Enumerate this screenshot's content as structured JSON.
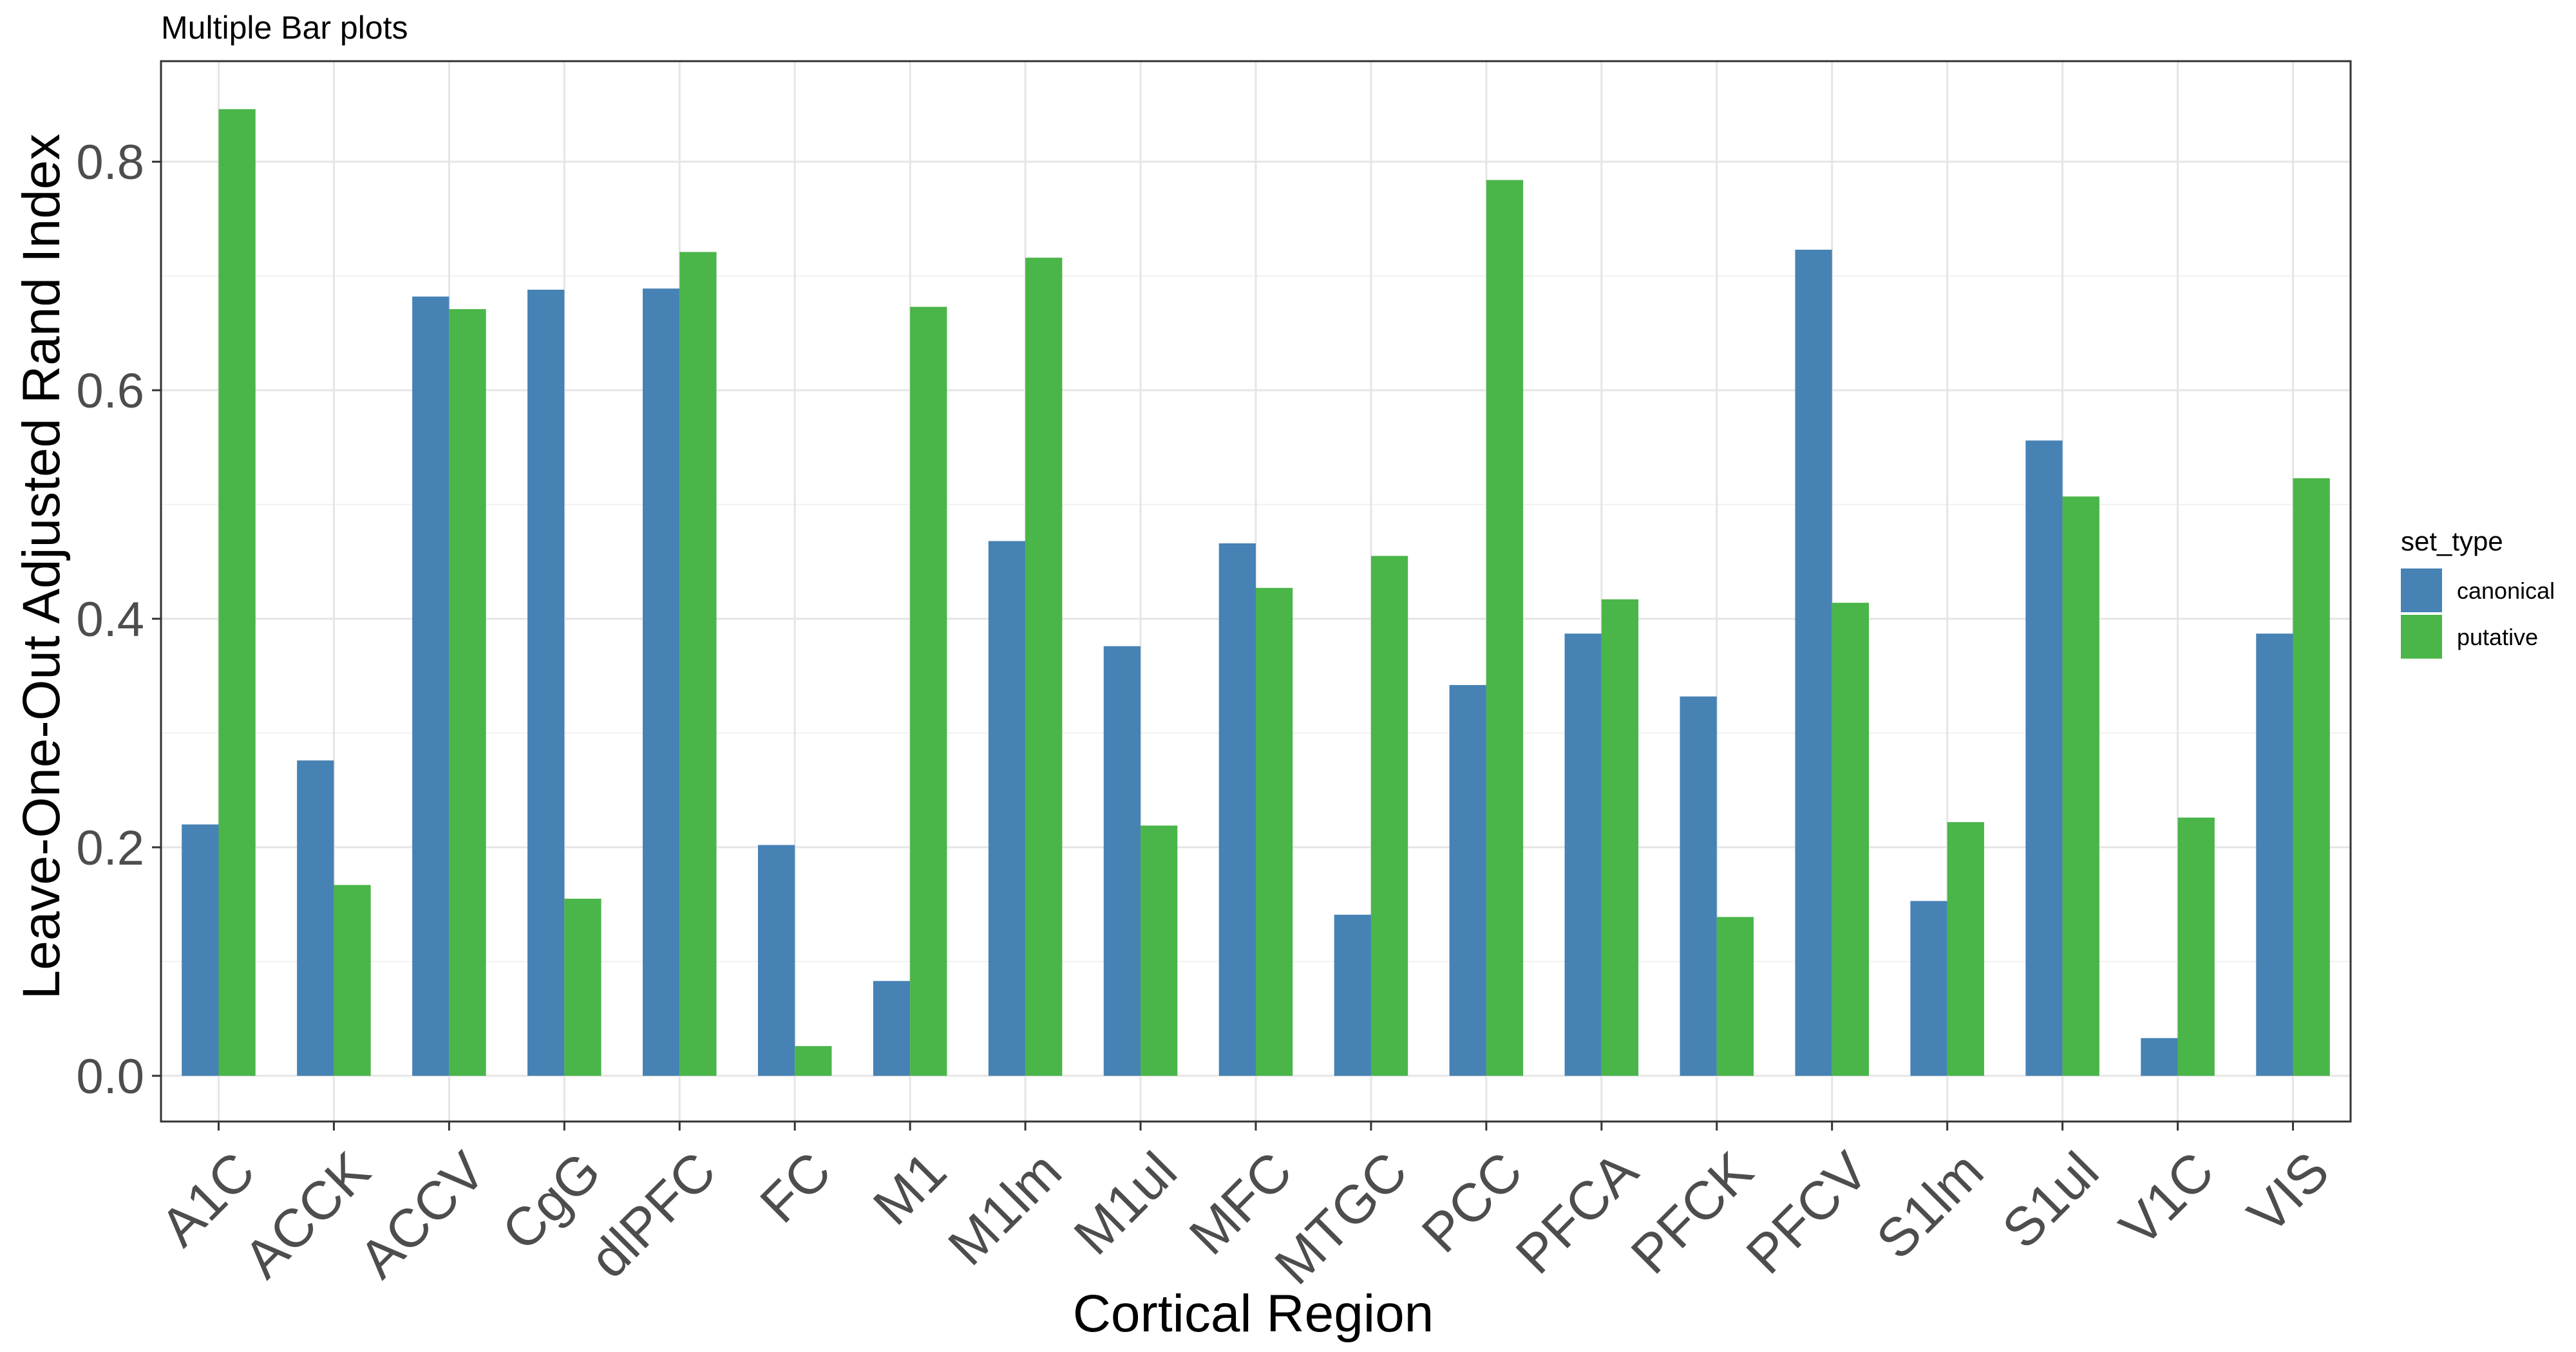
{
  "chart_data": {
    "type": "bar",
    "title": "Multiple Bar plots",
    "xlabel": "Cortical Region",
    "ylabel": "Leave-One-Out Adjusted Rand Index",
    "categories": [
      "A1C",
      "ACCK",
      "ACCV",
      "CgG",
      "dlPFC",
      "FC",
      "M1",
      "M1lm",
      "M1ul",
      "MFC",
      "MTGC",
      "PCC",
      "PFCA",
      "PFCK",
      "PFCV",
      "S1lm",
      "S1ul",
      "V1C",
      "VIS"
    ],
    "series": [
      {
        "name": "canonical",
        "color": "#4682b4",
        "values": [
          0.22,
          0.276,
          0.682,
          0.688,
          0.689,
          0.202,
          0.083,
          0.468,
          0.376,
          0.466,
          0.141,
          0.342,
          0.387,
          0.332,
          0.723,
          0.153,
          0.556,
          0.033,
          0.387
        ]
      },
      {
        "name": "putative",
        "color": "#4ab548",
        "values": [
          0.846,
          0.167,
          0.671,
          0.155,
          0.721,
          0.026,
          0.673,
          0.716,
          0.219,
          0.427,
          0.455,
          0.784,
          0.417,
          0.139,
          0.414,
          0.222,
          0.507,
          0.226,
          0.523
        ]
      }
    ],
    "ylim": [
      -0.04,
      0.888
    ],
    "yticks": [
      0.0,
      0.2,
      0.4,
      0.6,
      0.8
    ],
    "ytick_labels": [
      "0.0",
      "0.2",
      "0.4",
      "0.6",
      "0.8"
    ],
    "grid": true,
    "legend": {
      "title": "set_type",
      "position": "right"
    }
  }
}
